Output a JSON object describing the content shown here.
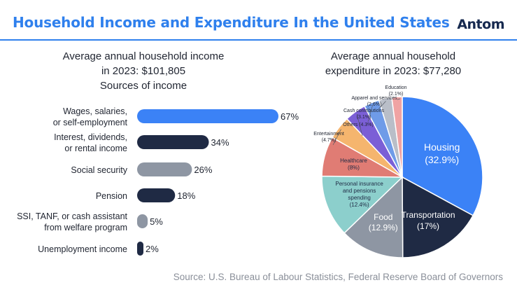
{
  "header": {
    "title": "Household Income and Expenditure In the United States",
    "logo": "Antom"
  },
  "income": {
    "title_line1": "Average annual household income",
    "title_line2": "in 2023: $101,805",
    "title_line3": "Sources of income"
  },
  "expenditure": {
    "title_line1": "Average annual household",
    "title_line2": "expenditure in 2023: $77,280"
  },
  "footer": {
    "source": "Source: U.S. Bureau of Labour Statistics, Federal Reserve Board of Governors"
  },
  "chart_data": [
    {
      "type": "bar",
      "orientation": "horizontal",
      "title": "Sources of income",
      "categories": [
        [
          "Wages, salaries,",
          "or self-employment"
        ],
        [
          "Interest, dividends,",
          "or rental income"
        ],
        [
          "Social security"
        ],
        [
          "Pension"
        ],
        [
          "SSI, TANF, or cash assistant",
          "from welfare program"
        ],
        [
          "Unemployment income"
        ]
      ],
      "values": [
        67,
        34,
        26,
        18,
        5,
        2
      ],
      "value_labels": [
        "67%",
        "34%",
        "26%",
        "18%",
        "5%",
        "2%"
      ],
      "colors": [
        "#3b82f6",
        "#1f2a44",
        "#8e96a3",
        "#1f2a44",
        "#8e96a3",
        "#1f2a44"
      ],
      "xlim": [
        0,
        67
      ]
    },
    {
      "type": "pie",
      "title": "Average annual household expenditure in 2023: $77,280",
      "slices": [
        {
          "label": "Housing",
          "value": 32.9,
          "pct": "(32.9%)",
          "color": "#3b82f6"
        },
        {
          "label": "Transportation",
          "value": 17.0,
          "pct": "(17%)",
          "color": "#1f2a44"
        },
        {
          "label": "Food",
          "value": 12.9,
          "pct": "(12.9%)",
          "color": "#8e96a3"
        },
        {
          "label": "Personal insurance|and pensions|spending",
          "value": 12.4,
          "pct": "(12.4%)",
          "color": "#8ccfcc"
        },
        {
          "label": "Healthcare",
          "value": 8.0,
          "pct": "(8%)",
          "color": "#e07c74"
        },
        {
          "label": "Entertainment",
          "value": 4.7,
          "pct": "(4.7%)",
          "color": "#f5b56e"
        },
        {
          "label": "Others",
          "value": 4.3,
          "pct": "(4.3%)",
          "color": "#7b5fd6"
        },
        {
          "label": "Cash contributions",
          "value": 3.1,
          "pct": "(3.1%)",
          "color": "#6f9be8"
        },
        {
          "label": "Apparel and services",
          "value": 2.6,
          "pct": "(2.6%)",
          "color": "#b9bec8"
        },
        {
          "label": "Education",
          "value": 2.1,
          "pct": "(2.1%)",
          "color": "#f0a3a3"
        }
      ]
    }
  ]
}
